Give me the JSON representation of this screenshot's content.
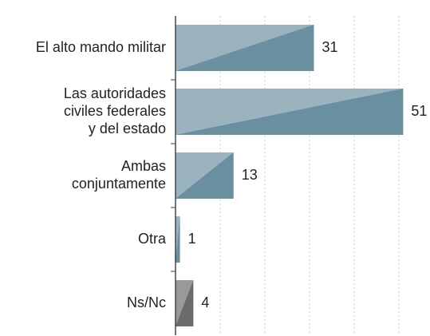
{
  "chart_data": {
    "type": "hbar",
    "categories": [
      [
        "El alto mando militar"
      ],
      [
        "Las autoridades",
        "civiles federales",
        "y del estado"
      ],
      [
        "Ambas",
        "conjuntamente"
      ],
      [
        "Otra"
      ],
      [
        "Ns/Nc"
      ]
    ],
    "values": [
      31,
      51,
      13,
      1,
      4
    ],
    "colors": [
      "#6a8fa1",
      "#6a8fa1",
      "#6a8fa1",
      "#6a8fa1",
      "#6b6b6b"
    ],
    "xlim": [
      0,
      57
    ],
    "xticks": [
      10,
      20,
      30,
      40,
      50
    ],
    "grid": true
  }
}
